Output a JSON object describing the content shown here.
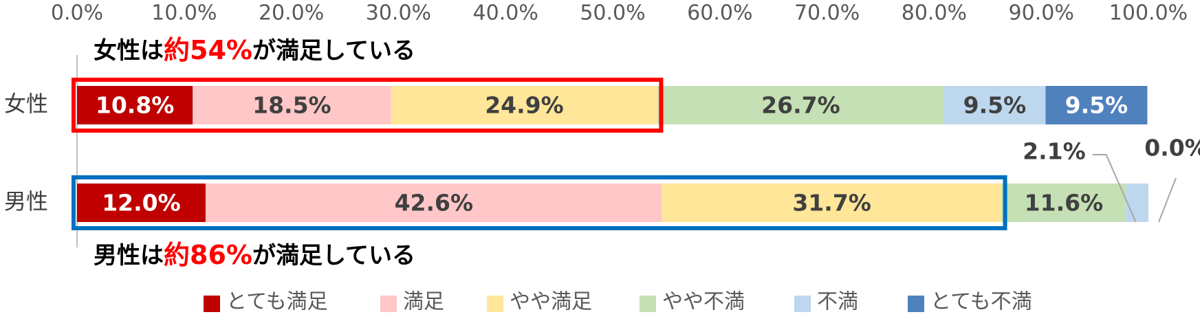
{
  "chart_data": {
    "type": "stacked_barh",
    "categories": [
      "女性",
      "男性"
    ],
    "series": [
      {
        "name": "とても満足",
        "color": "#c00000",
        "values": [
          10.8,
          12.0
        ],
        "value_labels": [
          "10.8%",
          "12.0%"
        ]
      },
      {
        "name": "満足",
        "color": "#ffc7c7",
        "values": [
          18.5,
          42.6
        ],
        "value_labels": [
          "18.5%",
          "42.6%"
        ]
      },
      {
        "name": "やや満足",
        "color": "#ffe699",
        "values": [
          24.9,
          31.7
        ],
        "value_labels": [
          "24.9%",
          "31.7%"
        ]
      },
      {
        "name": "やや不満",
        "color": "#c5e0b4",
        "values": [
          26.7,
          11.6
        ],
        "value_labels": [
          "26.7%",
          "11.6%"
        ]
      },
      {
        "name": "不満",
        "color": "#bdd7ee",
        "values": [
          9.5,
          2.1
        ],
        "value_labels": [
          "9.5%",
          "2.1%"
        ]
      },
      {
        "name": "とても不満",
        "color": "#4f81bd",
        "values": [
          9.5,
          0.0
        ],
        "value_labels": [
          "9.5%",
          "0.0%"
        ]
      }
    ],
    "xlim": [
      0,
      100
    ],
    "xticks": [
      {
        "value": 0,
        "label": "0.0%"
      },
      {
        "value": 10,
        "label": "10.0%"
      },
      {
        "value": 20,
        "label": "20.0%"
      },
      {
        "value": 30,
        "label": "30.0%"
      },
      {
        "value": 40,
        "label": "40.0%"
      },
      {
        "value": 50,
        "label": "50.0%"
      },
      {
        "value": 60,
        "label": "60.0%"
      },
      {
        "value": 70,
        "label": "70.0%"
      },
      {
        "value": 80,
        "label": "80.0%"
      },
      {
        "value": 90,
        "label": "90.0%"
      },
      {
        "value": 100,
        "label": "100.0%"
      }
    ],
    "annotations": [
      {
        "parts": [
          "女性は",
          "約54%",
          "が満足している"
        ],
        "box_color": "#ff0000"
      },
      {
        "parts": [
          "男性は",
          "約86%",
          "が満足している"
        ],
        "box_color": "#0070c0"
      }
    ]
  }
}
